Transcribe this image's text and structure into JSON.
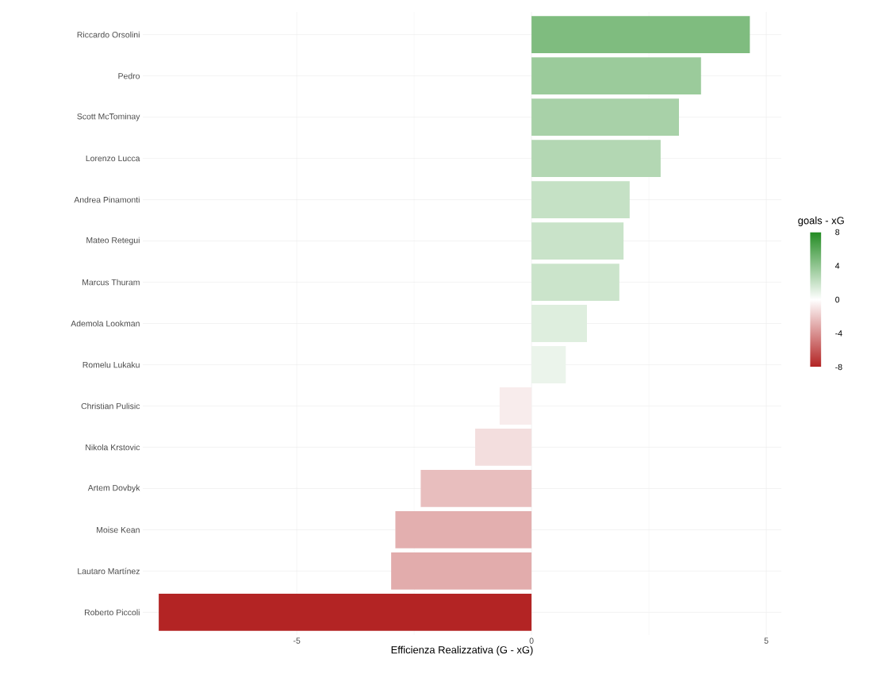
{
  "chart_data": {
    "type": "bar",
    "orientation": "horizontal",
    "xlabel": "Efficienza Realizzativa (G - xG)",
    "clabel": "goals - xG",
    "categories": [
      "Riccardo Orsolini",
      "Pedro",
      "Scott McTominay",
      "Lorenzo Lucca",
      "Andrea Pinamonti",
      "Mateo Retegui",
      "Marcus Thuram",
      "Ademola Lookman",
      "Romelu Lukaku",
      "Christian Pulisic",
      "Nikola Krstovic",
      "Artem Dovbyk",
      "Moise Kean",
      "Lautaro Martínez",
      "Roberto Piccoli"
    ],
    "values": [
      4.65,
      3.61,
      3.14,
      2.75,
      2.09,
      1.96,
      1.87,
      1.18,
      0.73,
      -0.68,
      -1.2,
      -2.36,
      -2.9,
      -2.99,
      -7.94
    ],
    "colors": [
      "#7fbc7f",
      "#9bcb9b",
      "#a8d1a8",
      "#b3d7b3",
      "#c5e1c5",
      "#c9e3c9",
      "#cbe4cb",
      "#deeede",
      "#ebf4eb",
      "#f8ecec",
      "#f3dede",
      "#e8bebe",
      "#e3afaf",
      "#e2acac",
      "#b32424"
    ],
    "xlim": [
      -8.28,
      5.32
    ],
    "xticks": [
      -5,
      0,
      5
    ],
    "grid": true,
    "clim": [
      -8,
      8
    ],
    "cticks": [
      -8,
      -4,
      0,
      4,
      8
    ]
  }
}
